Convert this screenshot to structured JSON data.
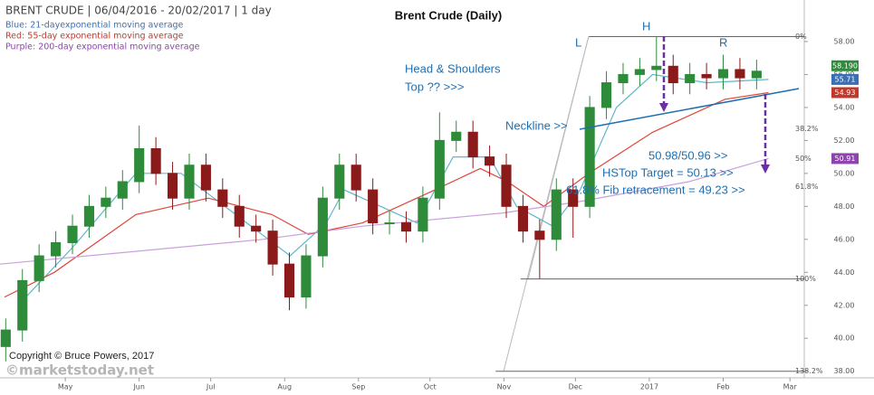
{
  "chart_data": {
    "type": "candlestick",
    "header": "BRENT CRUDE | 06/04/2016 - 20/02/2017 | 1 day",
    "title": "Brent Crude (Daily)",
    "copyright": "Copyright © Bruce Powers, 2017",
    "watermark": "©marketstoday.net",
    "xlim": [
      94.6,
      432
    ],
    "ylim": [
      37.6,
      58.6
    ],
    "xticks": [
      {
        "value": 122,
        "label": "May"
      },
      {
        "value": 153,
        "label": "Jun"
      },
      {
        "value": 183,
        "label": "Jul"
      },
      {
        "value": 214,
        "label": "Aug"
      },
      {
        "value": 245,
        "label": "Sep"
      },
      {
        "value": 275,
        "label": "Oct"
      },
      {
        "value": 306,
        "label": "Nov"
      },
      {
        "value": 336,
        "label": "Dec"
      },
      {
        "value": 367,
        "label": "2017"
      },
      {
        "value": 398,
        "label": "Feb"
      },
      {
        "value": 426,
        "label": "Mar"
      }
    ],
    "yticks": [
      {
        "value": 38,
        "label": "38.00"
      },
      {
        "value": 40,
        "label": "40.00"
      },
      {
        "value": 42,
        "label": "42.00"
      },
      {
        "value": 44,
        "label": "44.00"
      },
      {
        "value": 46,
        "label": "46.00"
      },
      {
        "value": 48,
        "label": "48.00"
      },
      {
        "value": 50,
        "label": "50.00"
      },
      {
        "value": 52,
        "label": "52.00"
      },
      {
        "value": 54,
        "label": "54.00"
      },
      {
        "value": 56,
        "label": "56.00"
      },
      {
        "value": 58,
        "label": "58.00"
      }
    ],
    "ohlc": {
      "up_color": "#2e8b3a",
      "down_color": "#8b1a1a",
      "last_label": "58.190",
      "x": [
        97,
        104,
        111,
        118,
        125,
        132,
        139,
        146,
        153,
        160,
        167,
        174,
        181,
        188,
        195,
        202,
        209,
        216,
        223,
        230,
        237,
        244,
        251,
        258,
        265,
        272,
        279,
        286,
        293,
        300,
        307,
        314,
        321,
        328,
        335,
        342,
        349,
        356,
        363,
        370,
        377,
        384,
        391,
        398,
        405,
        412
      ],
      "open": [
        39.5,
        40.5,
        43.5,
        45,
        45.8,
        46.8,
        48,
        48.5,
        49.5,
        51.5,
        50,
        48.5,
        50.5,
        49,
        48,
        46.8,
        46.5,
        44.5,
        42.5,
        45,
        48.5,
        50.5,
        49,
        47,
        47,
        46.5,
        48.5,
        52,
        52.5,
        51,
        50.5,
        48,
        46.5,
        46,
        49,
        48,
        54,
        55.5,
        56,
        56.3,
        56.5,
        55.5,
        56,
        55.8,
        56.3,
        55.8
      ],
      "high": [
        41.2,
        44.2,
        45.7,
        46.5,
        47.5,
        48.7,
        49.2,
        50.2,
        52.9,
        52.2,
        50.7,
        51.2,
        51.2,
        49.7,
        48.7,
        47.5,
        47.2,
        45.2,
        45.7,
        49.2,
        51.2,
        51.2,
        49.7,
        47.7,
        47.7,
        49.2,
        53.7,
        53.2,
        53.2,
        51.7,
        51.2,
        48.7,
        47.2,
        49.7,
        49.7,
        54.7,
        56.2,
        56.7,
        57,
        58.3,
        57.2,
        56.7,
        56.7,
        57.2,
        57,
        56.9
      ],
      "low": [
        38.6,
        39.8,
        42.8,
        44.3,
        45.1,
        46.1,
        47.3,
        47.8,
        48.8,
        49.3,
        47.8,
        47.8,
        48.3,
        47.3,
        46.1,
        45.8,
        43.8,
        41.7,
        41.8,
        44.3,
        47.8,
        48.3,
        46.3,
        46.3,
        45.8,
        45.8,
        47.8,
        51.3,
        50.3,
        49.8,
        47.3,
        45.8,
        43.6,
        45.3,
        46.1,
        47.3,
        53.3,
        54.8,
        55.3,
        55.6,
        54.8,
        54.8,
        55.1,
        55.1,
        55.1,
        55.1
      ],
      "close": [
        40.5,
        43.5,
        45,
        45.8,
        46.8,
        48,
        48.5,
        49.5,
        51.5,
        50,
        48.5,
        50.5,
        49,
        48,
        46.8,
        46.5,
        44.5,
        42.5,
        45,
        48.5,
        50.5,
        49,
        47,
        47,
        46.5,
        48.5,
        52,
        52.5,
        51,
        50.5,
        48,
        46.5,
        46,
        49,
        48,
        54,
        55.5,
        56,
        56.3,
        56.5,
        55.5,
        56,
        55.8,
        56.3,
        55.8,
        56.2
      ]
    },
    "series": [
      {
        "name": "Blue: 21-dayexponential moving average",
        "color": "#5fb8c8",
        "label_color": "#3a6fb5",
        "last_label": "55.71",
        "x": [
          102.2,
          125,
          151.6,
          170.6,
          193.5,
          216.3,
          231.5,
          239,
          254.3,
          269.5,
          284.7,
          300,
          311.3,
          326.5,
          338,
          353.2,
          368.4,
          391.2,
          417
        ],
        "values": [
          42,
          45.5,
          50,
          50,
          47.5,
          45,
          47,
          49,
          48,
          47,
          51,
          51,
          48,
          46.8,
          49,
          54,
          56,
          55.5,
          55.7
        ]
      },
      {
        "name": "Red: 55-day exponential moving average",
        "color": "#e0453a",
        "label_color": "#c0392b",
        "last_label": "54.93",
        "x": [
          96.5,
          117.4,
          151.6,
          182,
          208.7,
          223.9,
          246.7,
          277.1,
          296.1,
          307.5,
          322.7,
          341.7,
          368.4,
          398.8,
          417
        ],
        "values": [
          42.5,
          44,
          47.5,
          48.5,
          47.5,
          46.3,
          47,
          49,
          50.3,
          49.5,
          48,
          50,
          52.5,
          54.5,
          54.9
        ]
      },
      {
        "name": "Purple: 200-day exponential moving average",
        "color": "#c9a0dc",
        "label_color": "#8e44ad",
        "last_label": "50.91",
        "x": [
          94.6,
          204.9,
          246.7,
          305.6,
          338,
          383.6,
          417
        ],
        "values": [
          44.5,
          46,
          46.8,
          47.6,
          48.3,
          49.5,
          50.9
        ]
      }
    ],
    "fib_levels": [
      {
        "label": "0%",
        "value": 58.3
      },
      {
        "label": "38.2%",
        "value": 52.7
      },
      {
        "label": "50%",
        "value": 50.9
      },
      {
        "label": "61.8%",
        "value": 49.2
      },
      {
        "label": "100%",
        "value": 43.6
      },
      {
        "label": "138.2%",
        "value": 38
      }
    ],
    "annotations": {
      "left": "L",
      "head": "H",
      "right": "R",
      "pattern_1": "Head & Shoulders",
      "pattern_2": "Top ?? >>>",
      "neckline": "Neckline >>",
      "level": "50.98/50.96  >>",
      "target": "HSTop Target = 50.13 >>",
      "fib": "61.8%  Fib retracement = 49.23 >>"
    }
  }
}
